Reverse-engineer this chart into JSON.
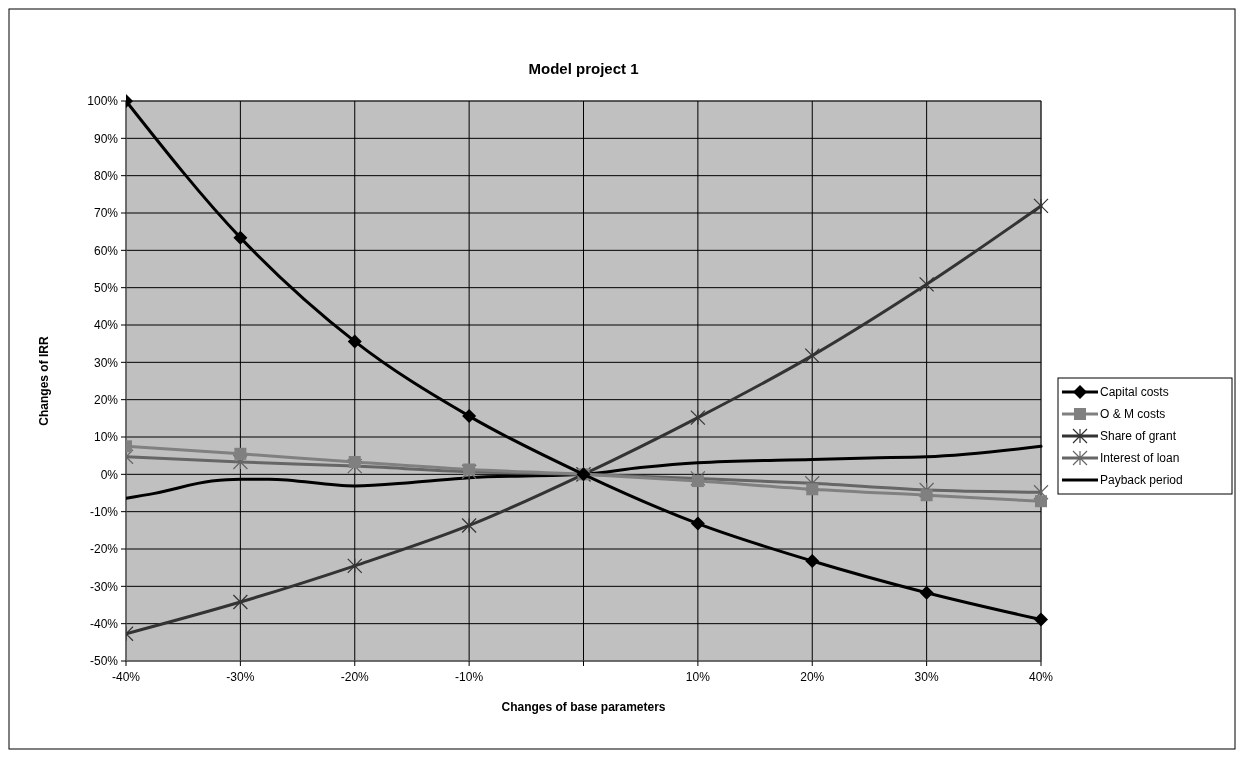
{
  "chart_data": {
    "type": "line",
    "title": "Model project 1",
    "xlabel": "Changes of base parameters",
    "ylabel": "Changes of IRR",
    "x": [
      -40,
      -30,
      -20,
      -10,
      0,
      10,
      20,
      30,
      40
    ],
    "xlim": [
      -40,
      40
    ],
    "xticks": [
      {
        "value": -40,
        "label": "-40%"
      },
      {
        "value": -30,
        "label": "-30%"
      },
      {
        "value": -20,
        "label": "-20%"
      },
      {
        "value": -10,
        "label": "-10%"
      },
      {
        "value": 0,
        "label": null
      },
      {
        "value": 10,
        "label": "10%"
      },
      {
        "value": 20,
        "label": "20%"
      },
      {
        "value": 30,
        "label": "30%"
      },
      {
        "value": 40,
        "label": "40%"
      }
    ],
    "ylim": [
      -50,
      100
    ],
    "yticks": [
      {
        "value": -50,
        "label": "-50%"
      },
      {
        "value": -40,
        "label": "-40%"
      },
      {
        "value": -30,
        "label": "-30%"
      },
      {
        "value": -20,
        "label": "-20%"
      },
      {
        "value": -10,
        "label": "-10%"
      },
      {
        "value": 0,
        "label": "0%"
      },
      {
        "value": 10,
        "label": "10%"
      },
      {
        "value": 20,
        "label": "20%"
      },
      {
        "value": 30,
        "label": "30%"
      },
      {
        "value": 40,
        "label": "40%"
      },
      {
        "value": 50,
        "label": "50%"
      },
      {
        "value": 60,
        "label": "60%"
      },
      {
        "value": 70,
        "label": "70%"
      },
      {
        "value": 80,
        "label": "80%"
      },
      {
        "value": 90,
        "label": "90%"
      },
      {
        "value": 100,
        "label": "100%"
      }
    ],
    "grid": true,
    "legend": "right",
    "line_style": "solid",
    "series": [
      {
        "name": "Capital costs",
        "color": "#000000",
        "marker": "diamond",
        "values": [
          100,
          63.4,
          35.6,
          15.6,
          0,
          -13.2,
          -23.2,
          -31.7,
          -38.9
        ]
      },
      {
        "name": "O & M costs",
        "color": "#808080",
        "marker": "square",
        "values": [
          7.5,
          5.5,
          3.3,
          1.3,
          0,
          -1.8,
          -4,
          -5.6,
          -7.2
        ]
      },
      {
        "name": "Share of grant",
        "color": "#333333",
        "marker": "cross",
        "values": [
          -42.7,
          -34.2,
          -24.5,
          -13.7,
          0,
          15.2,
          31.8,
          50.9,
          71.9
        ]
      },
      {
        "name": "Interest of loan",
        "color": "#666666",
        "marker": "cross",
        "values": [
          4.7,
          3.3,
          2.2,
          0.7,
          0,
          -1.1,
          -2.4,
          -4.2,
          -4.8
        ]
      },
      {
        "name": "Payback period",
        "color": "#000000",
        "marker": "none",
        "x": [
          -40,
          -37.5,
          -32.5,
          -30,
          -27.5,
          -20,
          -15,
          -10,
          0,
          5,
          10,
          20,
          25,
          30,
          40
        ],
        "values": [
          -6.4,
          -5.1,
          -1.8,
          -1.3,
          -1.3,
          -3.1,
          -2.2,
          -0.9,
          0,
          1.8,
          3.1,
          4,
          4.4,
          4.7,
          7.5
        ]
      }
    ]
  }
}
